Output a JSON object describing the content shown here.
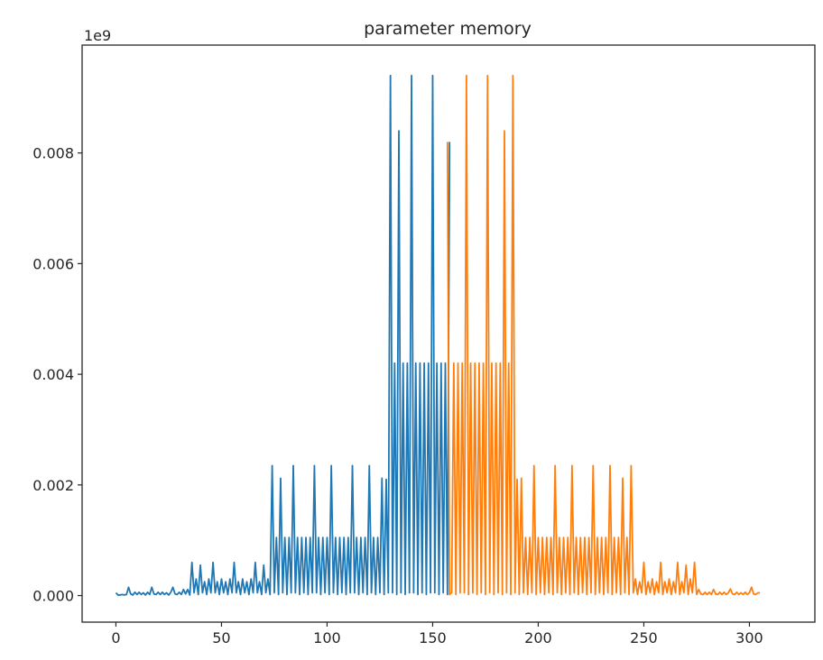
{
  "chart_data": {
    "type": "line",
    "title": "parameter memory",
    "xlabel": "",
    "ylabel": "",
    "y_offset_label": "1e9",
    "xlim": [
      -16,
      331
    ],
    "ylim": [
      -0.00048,
      0.00995
    ],
    "xticks": [
      0,
      50,
      100,
      150,
      200,
      250,
      300
    ],
    "xtick_labels": [
      "0",
      "50",
      "100",
      "150",
      "200",
      "250",
      "300"
    ],
    "yticks": [
      0.0,
      0.002,
      0.004,
      0.006,
      0.008
    ],
    "ytick_labels": [
      "0.000",
      "0.002",
      "0.004",
      "0.006",
      "0.008"
    ],
    "grid": false,
    "legend": null,
    "series": [
      {
        "name": "series-1",
        "color": "#1f77b4",
        "x_start": 0,
        "values": [
          5e-05,
          1e-05,
          1e-05,
          2e-05,
          1e-05,
          2e-05,
          0.00015,
          3e-05,
          1e-05,
          6e-05,
          2e-05,
          6e-05,
          2e-05,
          5e-05,
          1e-05,
          6e-05,
          2e-05,
          0.00015,
          3e-05,
          2e-05,
          6e-05,
          2e-05,
          6e-05,
          2e-05,
          5e-05,
          1e-05,
          6e-05,
          0.00015,
          3e-05,
          2e-05,
          6e-05,
          2e-05,
          0.00011,
          3e-05,
          0.00011,
          1e-05,
          0.0006,
          5e-05,
          0.0003,
          2e-05,
          0.00055,
          5e-05,
          0.00025,
          2e-05,
          0.0003,
          5e-05,
          0.0006,
          5e-05,
          0.00025,
          2e-05,
          0.0003,
          5e-05,
          0.00025,
          2e-05,
          0.0003,
          5e-05,
          0.0006,
          5e-05,
          0.00025,
          2e-05,
          0.0003,
          5e-05,
          0.00025,
          2e-05,
          0.0003,
          5e-05,
          0.0006,
          5e-05,
          0.00025,
          2e-05,
          0.00055,
          5e-05,
          0.0003,
          2e-05,
          0.00235,
          5e-05,
          0.00105,
          2e-05,
          0.00212,
          5e-05,
          0.00105,
          2e-05,
          0.00105,
          5e-05,
          0.00235,
          5e-05,
          0.00105,
          2e-05,
          0.00105,
          5e-05,
          0.00105,
          2e-05,
          0.00105,
          5e-05,
          0.00235,
          5e-05,
          0.00105,
          2e-05,
          0.00105,
          5e-05,
          0.00105,
          2e-05,
          0.00235,
          5e-05,
          0.00105,
          2e-05,
          0.00105,
          5e-05,
          0.00105,
          2e-05,
          0.00105,
          5e-05,
          0.00235,
          5e-05,
          0.00105,
          2e-05,
          0.00105,
          5e-05,
          0.00105,
          2e-05,
          0.00235,
          5e-05,
          0.00105,
          2e-05,
          0.00105,
          5e-05,
          0.00212,
          2e-05,
          0.0021,
          5e-05,
          0.0094,
          5e-05,
          0.0042,
          2e-05,
          0.0084,
          5e-05,
          0.0042,
          2e-05,
          0.0042,
          5e-05,
          0.0094,
          5e-05,
          0.0042,
          2e-05,
          0.0042,
          5e-05,
          0.0042,
          2e-05,
          0.0042,
          5e-05,
          0.0094,
          5e-05,
          0.0042,
          2e-05,
          0.0042,
          5e-05,
          0.0042,
          2e-05,
          0.0082
        ]
      },
      {
        "name": "series-2",
        "color": "#ff7f0e",
        "x_start": 157,
        "values": [
          0.0082,
          2e-05,
          5e-05,
          0.0042,
          2e-05,
          0.0042,
          5e-05,
          0.0042,
          5e-05,
          0.0094,
          2e-05,
          0.0042,
          5e-05,
          0.0042,
          2e-05,
          0.0042,
          5e-05,
          0.0042,
          2e-05,
          0.0094,
          5e-05,
          0.0042,
          2e-05,
          0.0042,
          5e-05,
          0.0042,
          2e-05,
          0.0084,
          5e-05,
          0.0042,
          2e-05,
          0.0094,
          5e-05,
          0.0021,
          2e-05,
          0.00212,
          5e-05,
          0.00105,
          2e-05,
          0.00105,
          5e-05,
          0.00235,
          2e-05,
          0.00105,
          5e-05,
          0.00105,
          2e-05,
          0.00105,
          5e-05,
          0.00105,
          2e-05,
          0.00235,
          5e-05,
          0.00105,
          2e-05,
          0.00105,
          5e-05,
          0.00105,
          2e-05,
          0.00235,
          5e-05,
          0.00105,
          2e-05,
          0.00105,
          5e-05,
          0.00105,
          2e-05,
          0.00105,
          5e-05,
          0.00235,
          2e-05,
          0.00105,
          5e-05,
          0.00105,
          2e-05,
          0.00105,
          5e-05,
          0.00235,
          2e-05,
          0.00105,
          5e-05,
          0.00105,
          2e-05,
          0.00212,
          5e-05,
          0.00105,
          2e-05,
          0.00235,
          5e-05,
          0.0003,
          2e-05,
          0.00025,
          5e-05,
          0.0006,
          2e-05,
          0.00025,
          5e-05,
          0.0003,
          2e-05,
          0.00025,
          5e-05,
          0.0006,
          2e-05,
          0.00025,
          5e-05,
          0.0003,
          2e-05,
          0.00025,
          5e-05,
          0.0006,
          2e-05,
          0.00025,
          5e-05,
          0.00055,
          2e-05,
          0.0003,
          5e-05,
          0.0006,
          2e-05,
          0.00011,
          3e-05,
          2e-05,
          6e-05,
          2e-05,
          6e-05,
          2e-05,
          0.00011,
          3e-05,
          2e-05,
          6e-05,
          2e-05,
          6e-05,
          2e-05,
          5e-05,
          0.00012,
          3e-05,
          2e-05,
          6e-05,
          2e-05,
          5e-05,
          2e-05,
          6e-05,
          2e-05,
          5e-05,
          0.00015,
          3e-05,
          2e-05,
          5e-05,
          5e-05
        ]
      }
    ]
  }
}
